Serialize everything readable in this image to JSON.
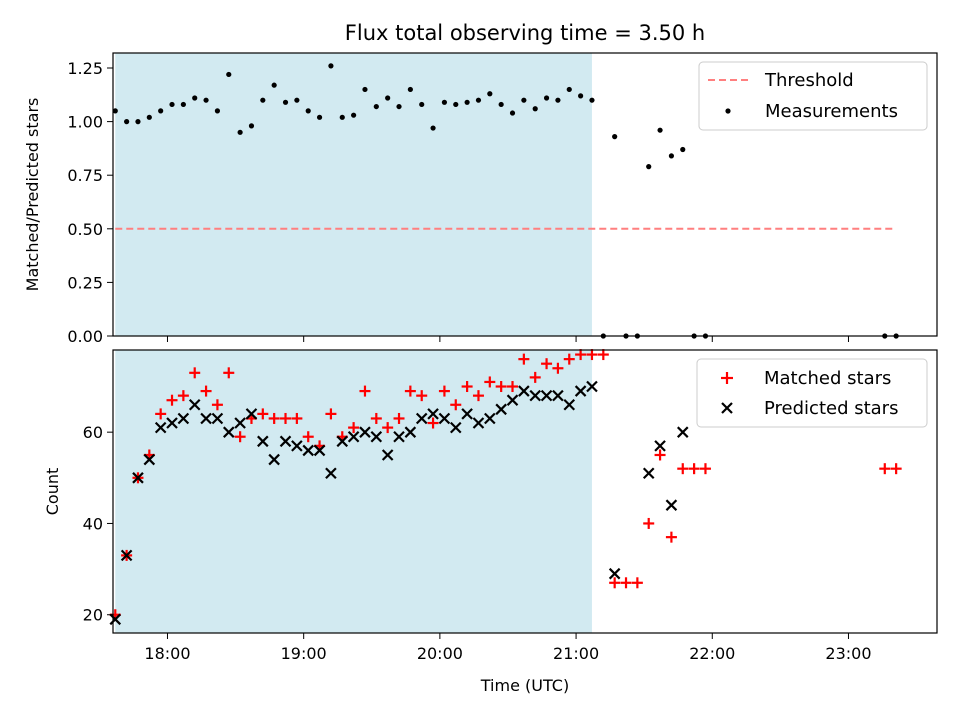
{
  "title": "Flux total observing time = 3.50 h",
  "colors": {
    "shade": "#add8e6",
    "threshold": "#ff7f7f",
    "measurements": "#000000",
    "matched": "#ff0000",
    "predicted": "#000000"
  },
  "chart_data": [
    {
      "type": "scatter",
      "panel": "top",
      "ylabel": "Matched/Predicted stars",
      "xlabel": "",
      "xlim": [
        "17:36",
        "23:39"
      ],
      "ylim": [
        0,
        1.32
      ],
      "yticks": [
        "0.00",
        "0.25",
        "0.50",
        "0.75",
        "1.00",
        "1.25"
      ],
      "ytick_values": [
        0,
        0.25,
        0.5,
        0.75,
        1.0,
        1.25
      ],
      "grid": false,
      "legend_position": "top-right",
      "shaded_span": [
        "17:37",
        "21:07"
      ],
      "threshold": {
        "name": "Threshold",
        "value": 0.5,
        "x_range": [
          "17:37",
          "23:21"
        ]
      },
      "series": [
        {
          "name": "Measurements",
          "x": [
            "17:37",
            "17:42",
            "17:47",
            "17:52",
            "17:57",
            "18:02",
            "18:07",
            "18:12",
            "18:17",
            "18:22",
            "18:27",
            "18:32",
            "18:37",
            "18:42",
            "18:47",
            "18:52",
            "18:57",
            "19:02",
            "19:07",
            "19:12",
            "19:17",
            "19:22",
            "19:27",
            "19:32",
            "19:37",
            "19:42",
            "19:47",
            "19:52",
            "19:57",
            "20:02",
            "20:07",
            "20:12",
            "20:17",
            "20:22",
            "20:27",
            "20:32",
            "20:37",
            "20:42",
            "20:47",
            "20:52",
            "20:57",
            "21:02",
            "21:07",
            "21:12",
            "21:17",
            "21:22",
            "21:27",
            "21:32",
            "21:37",
            "21:42",
            "21:47",
            "21:52",
            "21:57",
            "23:16",
            "23:21"
          ],
          "y": [
            1.05,
            1.0,
            1.0,
            1.02,
            1.05,
            1.08,
            1.08,
            1.11,
            1.1,
            1.05,
            1.22,
            0.95,
            0.98,
            1.1,
            1.17,
            1.09,
            1.1,
            1.05,
            1.02,
            1.26,
            1.02,
            1.03,
            1.15,
            1.07,
            1.11,
            1.07,
            1.15,
            1.08,
            0.97,
            1.09,
            1.08,
            1.09,
            1.1,
            1.13,
            1.08,
            1.04,
            1.1,
            1.06,
            1.11,
            1.1,
            1.15,
            1.12,
            1.1,
            0.0,
            0.93,
            0.0,
            0.0,
            0.79,
            0.96,
            0.84,
            0.87,
            0.0,
            0.0,
            0.0,
            0.0
          ]
        }
      ]
    },
    {
      "type": "scatter",
      "panel": "bottom",
      "ylabel": "Count",
      "xlabel": "Time (UTC)",
      "xlim": [
        "17:36",
        "23:39"
      ],
      "ylim": [
        16,
        78
      ],
      "yticks": [
        "20",
        "40",
        "60"
      ],
      "ytick_values": [
        20,
        40,
        60
      ],
      "xticks": [
        "18:00",
        "19:00",
        "20:00",
        "21:00",
        "22:00",
        "23:00"
      ],
      "grid": false,
      "legend_position": "top-right",
      "shaded_span": [
        "17:37",
        "21:07"
      ],
      "series": [
        {
          "name": "Matched stars",
          "marker": "plus",
          "x": [
            "17:37",
            "17:42",
            "17:47",
            "17:52",
            "17:57",
            "18:02",
            "18:07",
            "18:12",
            "18:17",
            "18:22",
            "18:27",
            "18:32",
            "18:37",
            "18:42",
            "18:47",
            "18:52",
            "18:57",
            "19:02",
            "19:07",
            "19:12",
            "19:17",
            "19:22",
            "19:27",
            "19:32",
            "19:37",
            "19:42",
            "19:47",
            "19:52",
            "19:57",
            "20:02",
            "20:07",
            "20:12",
            "20:17",
            "20:22",
            "20:27",
            "20:32",
            "20:37",
            "20:42",
            "20:47",
            "20:52",
            "20:57",
            "21:02",
            "21:07",
            "21:12",
            "21:17",
            "21:22",
            "21:27",
            "21:32",
            "21:37",
            "21:42",
            "21:47",
            "21:52",
            "21:57",
            "23:16",
            "23:21"
          ],
          "y": [
            20,
            33,
            50,
            55,
            64,
            67,
            68,
            73,
            69,
            66,
            73,
            59,
            63,
            64,
            63,
            63,
            63,
            59,
            57,
            64,
            59,
            61,
            69,
            63,
            61,
            63,
            69,
            68,
            62,
            69,
            66,
            70,
            68,
            71,
            70,
            70,
            76,
            72,
            75,
            74,
            76,
            77,
            77,
            77,
            27,
            27,
            27,
            40,
            55,
            37,
            52,
            52,
            52,
            52,
            52
          ]
        },
        {
          "name": "Predicted stars",
          "marker": "x",
          "x": [
            "17:37",
            "17:42",
            "17:47",
            "17:52",
            "17:57",
            "18:02",
            "18:07",
            "18:12",
            "18:17",
            "18:22",
            "18:27",
            "18:32",
            "18:37",
            "18:42",
            "18:47",
            "18:52",
            "18:57",
            "19:02",
            "19:07",
            "19:12",
            "19:17",
            "19:22",
            "19:27",
            "19:32",
            "19:37",
            "19:42",
            "19:47",
            "19:52",
            "19:57",
            "20:02",
            "20:07",
            "20:12",
            "20:17",
            "20:22",
            "20:27",
            "20:32",
            "20:37",
            "20:42",
            "20:47",
            "20:52",
            "20:57",
            "21:02",
            "21:07",
            "21:17",
            "21:32",
            "21:37",
            "21:42",
            "21:47"
          ],
          "y": [
            19,
            33,
            50,
            54,
            61,
            62,
            63,
            66,
            63,
            63,
            60,
            62,
            64,
            58,
            54,
            58,
            57,
            56,
            56,
            51,
            58,
            59,
            60,
            59,
            55,
            59,
            60,
            63,
            64,
            63,
            61,
            64,
            62,
            63,
            65,
            67,
            69,
            68,
            68,
            68,
            66,
            69,
            70,
            29,
            51,
            57,
            44,
            60
          ]
        }
      ]
    }
  ]
}
